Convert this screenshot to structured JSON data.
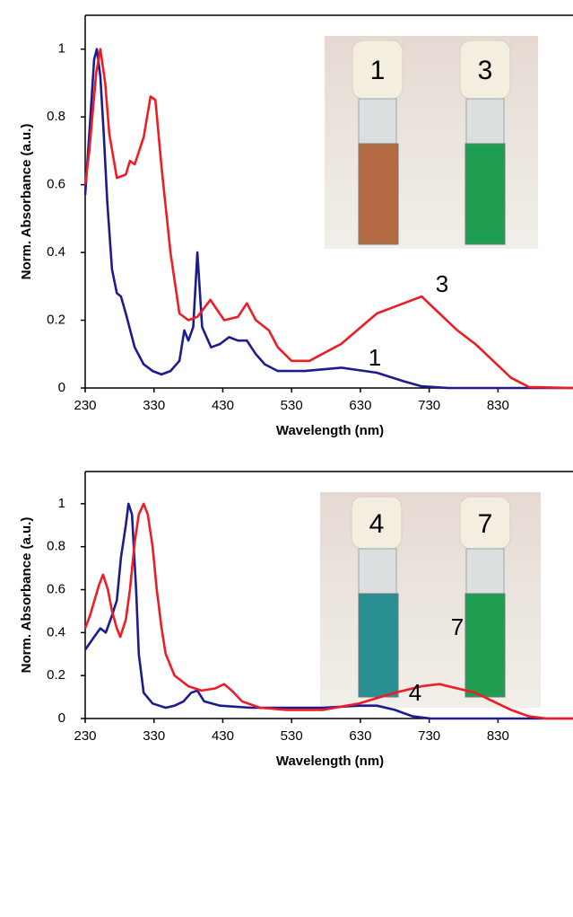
{
  "chart_data": [
    {
      "type": "line",
      "x_label": "Wavelength (nm)",
      "y_label": "Norm. Absorbance (a.u.)",
      "xlim": [
        230,
        939
      ],
      "ylim": [
        0,
        1.1
      ],
      "xticks": [
        230,
        330,
        430,
        530,
        630,
        730,
        830
      ],
      "yticks": [
        0,
        0.2,
        0.4,
        0.6,
        0.8,
        1
      ],
      "annotations": [
        "3",
        "1"
      ],
      "inset_labels": [
        "1",
        "3"
      ],
      "series": [
        {
          "name": "1",
          "color": "#1c1c8e",
          "x": [
            230,
            236,
            243,
            247,
            252,
            257,
            262,
            269,
            276,
            282,
            289,
            302,
            315,
            328,
            341,
            354,
            367,
            374,
            380,
            387,
            393,
            400,
            413,
            426,
            439,
            452,
            465,
            478,
            491,
            510,
            549,
            602,
            654,
            693,
            719,
            758,
            939
          ],
          "values": [
            0.57,
            0.75,
            0.97,
            1.0,
            0.92,
            0.75,
            0.55,
            0.35,
            0.28,
            0.27,
            0.22,
            0.12,
            0.07,
            0.05,
            0.04,
            0.05,
            0.08,
            0.17,
            0.14,
            0.18,
            0.4,
            0.18,
            0.12,
            0.13,
            0.15,
            0.14,
            0.14,
            0.1,
            0.07,
            0.05,
            0.05,
            0.06,
            0.045,
            0.02,
            0.005,
            0,
            0
          ]
        },
        {
          "name": "3",
          "color": "#ee1c24",
          "x": [
            230,
            236,
            246,
            252,
            259,
            265,
            276,
            289,
            295,
            302,
            315,
            325,
            332,
            341,
            354,
            367,
            380,
            393,
            412,
            432,
            452,
            465,
            478,
            497,
            510,
            530,
            556,
            602,
            654,
            693,
            719,
            745,
            771,
            797,
            823,
            849,
            875,
            939
          ],
          "values": [
            0.6,
            0.7,
            0.93,
            1.0,
            0.9,
            0.75,
            0.62,
            0.63,
            0.67,
            0.66,
            0.74,
            0.86,
            0.85,
            0.65,
            0.4,
            0.22,
            0.2,
            0.21,
            0.26,
            0.2,
            0.21,
            0.25,
            0.2,
            0.17,
            0.12,
            0.08,
            0.08,
            0.13,
            0.22,
            0.25,
            0.27,
            0.22,
            0.17,
            0.13,
            0.08,
            0.03,
            0.003,
            0
          ]
        }
      ]
    },
    {
      "type": "line",
      "x_label": "Wavelength (nm)",
      "y_label": "Norm. Absorbance (a.u.)",
      "xlim": [
        230,
        939
      ],
      "ylim": [
        0,
        1.15
      ],
      "xticks": [
        230,
        330,
        430,
        530,
        630,
        730,
        830
      ],
      "yticks": [
        0,
        0.2,
        0.4,
        0.6,
        0.8,
        1
      ],
      "annotations": [
        "7",
        "4"
      ],
      "inset_labels": [
        "4",
        "7"
      ],
      "series": [
        {
          "name": "4",
          "color": "#1c1c8e",
          "x": [
            230,
            243,
            252,
            260,
            269,
            276,
            282,
            289,
            293,
            298,
            304,
            308,
            315,
            328,
            347,
            360,
            373,
            384,
            393,
            403,
            426,
            471,
            523,
            576,
            628,
            654,
            680,
            706,
            732,
            939
          ],
          "values": [
            0.32,
            0.38,
            0.42,
            0.4,
            0.48,
            0.55,
            0.75,
            0.9,
            1.0,
            0.95,
            0.6,
            0.3,
            0.12,
            0.07,
            0.05,
            0.06,
            0.08,
            0.12,
            0.13,
            0.08,
            0.06,
            0.05,
            0.05,
            0.05,
            0.06,
            0.06,
            0.04,
            0.01,
            0,
            0
          ]
        },
        {
          "name": "7",
          "color": "#ee1c24",
          "x": [
            230,
            237,
            250,
            256,
            263,
            269,
            276,
            281,
            289,
            295,
            302,
            308,
            315,
            321,
            328,
            334,
            341,
            347,
            360,
            380,
            399,
            419,
            432,
            443,
            458,
            484,
            523,
            576,
            628,
            680,
            719,
            745,
            771,
            797,
            823,
            849,
            875,
            901,
            939
          ],
          "values": [
            0.42,
            0.48,
            0.62,
            0.67,
            0.6,
            0.5,
            0.42,
            0.38,
            0.46,
            0.6,
            0.82,
            0.95,
            1.0,
            0.95,
            0.8,
            0.6,
            0.42,
            0.3,
            0.2,
            0.15,
            0.13,
            0.14,
            0.16,
            0.13,
            0.08,
            0.05,
            0.04,
            0.04,
            0.07,
            0.12,
            0.15,
            0.16,
            0.14,
            0.12,
            0.08,
            0.04,
            0.01,
            0,
            0
          ]
        }
      ]
    }
  ]
}
